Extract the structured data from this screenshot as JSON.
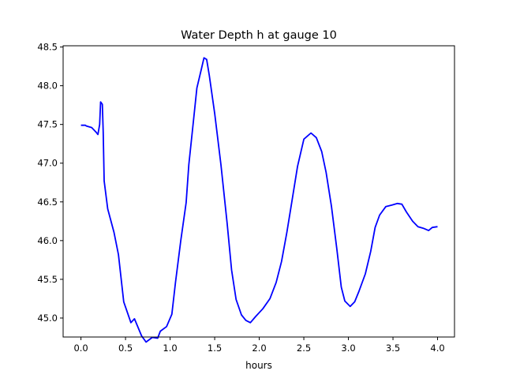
{
  "chart_data": {
    "type": "line",
    "title": "Water Depth h at gauge 10",
    "xlabel": "hours",
    "ylabel": "",
    "xlim": [
      -0.2,
      4.19
    ],
    "ylim": [
      44.755,
      48.516
    ],
    "xticks": [
      0.0,
      0.5,
      1.0,
      1.5,
      2.0,
      2.5,
      3.0,
      3.5,
      4.0
    ],
    "xtick_labels": [
      "0.0",
      "0.5",
      "1.0",
      "1.5",
      "2.0",
      "2.5",
      "3.0",
      "3.5",
      "4.0"
    ],
    "yticks": [
      45.0,
      45.5,
      46.0,
      46.5,
      47.0,
      47.5,
      48.0,
      48.5
    ],
    "ytick_labels": [
      "45.0",
      "45.5",
      "46.0",
      "46.5",
      "47.0",
      "47.5",
      "48.0",
      "48.5"
    ],
    "grid": false,
    "series": [
      {
        "name": "h",
        "color": "#0000ff",
        "x": [
          0.0,
          0.05,
          0.06,
          0.12,
          0.17,
          0.19,
          0.21,
          0.22,
          0.24,
          0.25,
          0.26,
          0.3,
          0.37,
          0.42,
          0.48,
          0.56,
          0.6,
          0.68,
          0.73,
          0.8,
          0.86,
          0.89,
          0.96,
          1.02,
          1.06,
          1.12,
          1.18,
          1.21,
          1.26,
          1.3,
          1.35,
          1.38,
          1.41,
          1.44,
          1.5,
          1.57,
          1.64,
          1.69,
          1.74,
          1.8,
          1.85,
          1.9,
          1.96,
          2.04,
          2.12,
          2.19,
          2.25,
          2.31,
          2.36,
          2.43,
          2.5,
          2.58,
          2.64,
          2.7,
          2.75,
          2.81,
          2.87,
          2.92,
          2.96,
          3.02,
          3.07,
          3.12,
          3.19,
          3.25,
          3.3,
          3.35,
          3.42,
          3.49,
          3.55,
          3.6,
          3.65,
          3.72,
          3.78,
          3.84,
          3.9,
          3.94,
          4.0
        ],
        "y": [
          47.49,
          47.49,
          47.48,
          47.46,
          47.4,
          47.37,
          47.5,
          47.79,
          47.76,
          47.4,
          46.77,
          46.41,
          46.11,
          45.82,
          45.21,
          44.94,
          44.99,
          44.77,
          44.69,
          44.75,
          44.74,
          44.83,
          44.89,
          45.05,
          45.46,
          46.0,
          46.49,
          46.98,
          47.53,
          47.97,
          48.21,
          48.36,
          48.34,
          48.13,
          47.64,
          46.98,
          46.22,
          45.62,
          45.24,
          45.04,
          44.97,
          44.94,
          45.02,
          45.12,
          45.25,
          45.46,
          45.73,
          46.11,
          46.46,
          46.96,
          47.31,
          47.39,
          47.33,
          47.15,
          46.88,
          46.44,
          45.89,
          45.4,
          45.22,
          45.15,
          45.21,
          45.35,
          45.57,
          45.86,
          46.17,
          46.33,
          46.44,
          46.46,
          46.48,
          46.47,
          46.37,
          46.25,
          46.18,
          46.16,
          46.13,
          46.17,
          46.18
        ]
      }
    ]
  }
}
